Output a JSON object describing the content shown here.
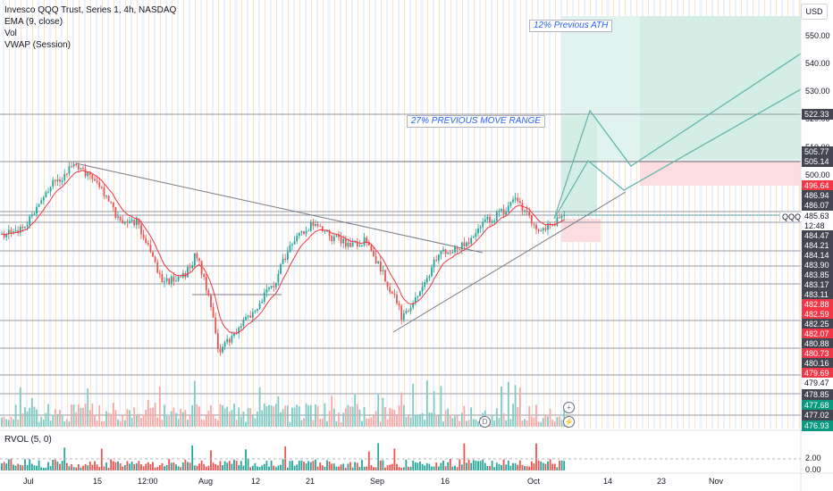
{
  "legend": {
    "title": "Invesco QQQ Trust, Series 1, 4h, NASDAQ",
    "ema": "EMA (9, close)",
    "vol": "Vol",
    "vwap": "VWAP (Session)",
    "rvol": "RVOL (5, 0)"
  },
  "currency": "USD",
  "symbol_tag": "QQQ",
  "annotations": {
    "ath_label": "12% Previous ATH",
    "range_label": "27% PREVIOUS MOVE RANGE"
  },
  "price_axis_ticks": [
    "550.00",
    "540.00",
    "530.00",
    "520.00",
    "510.00",
    "500.00"
  ],
  "price_labels": [
    {
      "text": "522.33",
      "kind": "dark"
    },
    {
      "text": "505.77",
      "kind": "dark"
    },
    {
      "text": "505.14",
      "kind": "dark"
    },
    {
      "text": "496.64",
      "kind": "red"
    },
    {
      "text": "486.94",
      "kind": "dark"
    },
    {
      "text": "486.07",
      "kind": "dark"
    },
    {
      "text": "485.63",
      "kind": "plain"
    },
    {
      "text": "12:48",
      "kind": "plain"
    },
    {
      "text": "484.47",
      "kind": "dark"
    },
    {
      "text": "484.21",
      "kind": "dark"
    },
    {
      "text": "484.14",
      "kind": "dark"
    },
    {
      "text": "483.90",
      "kind": "dark"
    },
    {
      "text": "483.85",
      "kind": "dark"
    },
    {
      "text": "483.17",
      "kind": "dark"
    },
    {
      "text": "483.11",
      "kind": "dark"
    },
    {
      "text": "482.88",
      "kind": "red"
    },
    {
      "text": "482.59",
      "kind": "red"
    },
    {
      "text": "482.25",
      "kind": "dark"
    },
    {
      "text": "482.07",
      "kind": "red"
    },
    {
      "text": "480.88",
      "kind": "dark"
    },
    {
      "text": "480.73",
      "kind": "red"
    },
    {
      "text": "480.16",
      "kind": "dark"
    },
    {
      "text": "479.69",
      "kind": "red"
    },
    {
      "text": "479.47",
      "kind": "plain"
    },
    {
      "text": "478.85",
      "kind": "dark"
    },
    {
      "text": "477.68",
      "kind": "green"
    },
    {
      "text": "477.02",
      "kind": "dark"
    },
    {
      "text": "476.93",
      "kind": "green"
    }
  ],
  "rvol_axis_ticks": [
    "2.00",
    "0.00"
  ],
  "time_axis": [
    "Jul",
    "15",
    "12:00",
    "Aug",
    "12",
    "21",
    "Sep",
    "16",
    "Oct",
    "14",
    "23",
    "Nov"
  ],
  "event_markers": [
    "D"
  ],
  "colors": {
    "up": "#26a69a",
    "down": "#ef5350",
    "ema": "#f23645",
    "target_zone": "#e0f3ee",
    "stop_zone": "#fcdde0",
    "projection": "#5cb3a8"
  }
}
